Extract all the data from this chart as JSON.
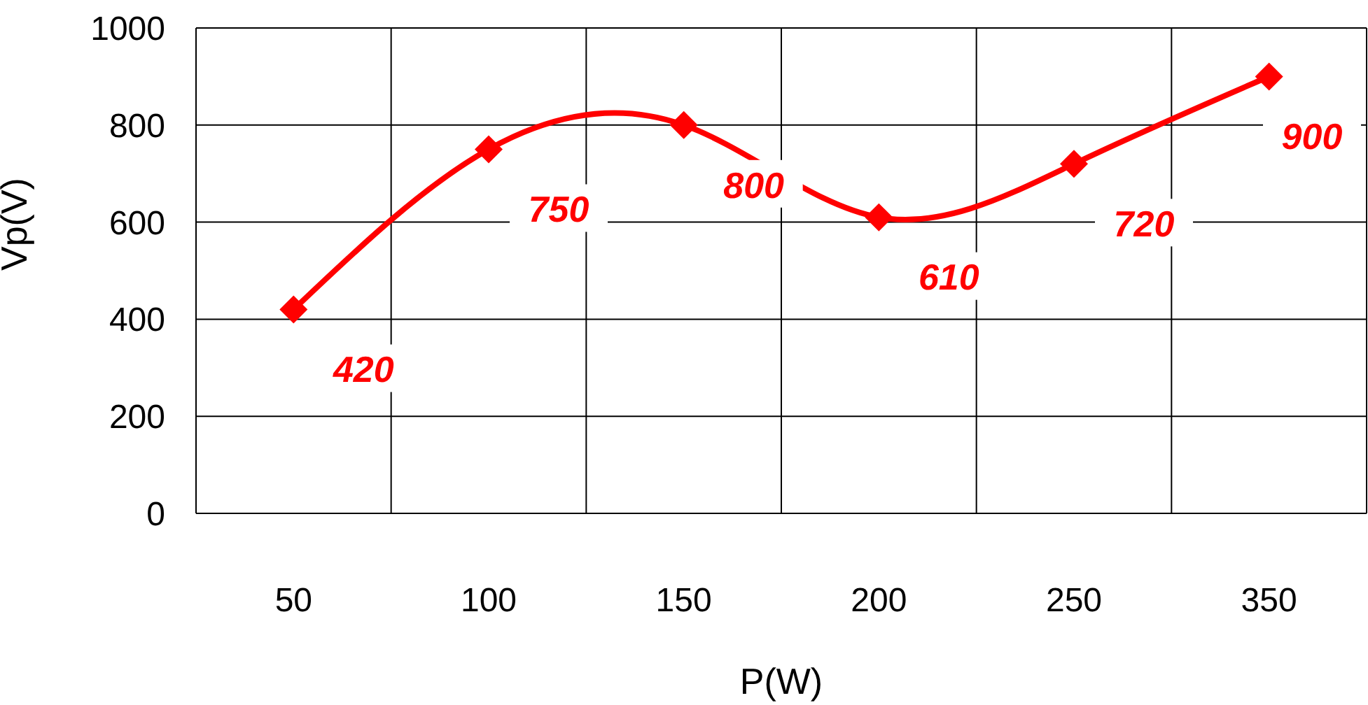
{
  "chart_data": {
    "type": "line",
    "xlabel": "P(W)",
    "ylabel": "Vp(V)",
    "categories": [
      "50",
      "100",
      "150",
      "200",
      "250",
      "350"
    ],
    "series": [
      {
        "color": "#ff0000",
        "values": [
          420,
          750,
          800,
          610,
          720,
          900
        ]
      }
    ],
    "ylim": [
      0,
      1000
    ],
    "yticks": [
      0,
      200,
      400,
      600,
      800,
      1000
    ],
    "grid": true,
    "marker": "diamond",
    "line_style": "solid",
    "data_labels": true
  }
}
